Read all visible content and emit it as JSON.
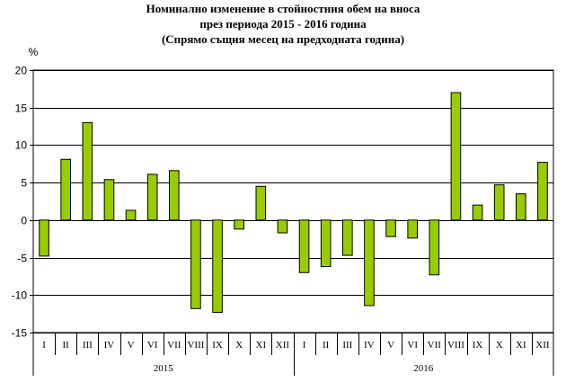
{
  "chart_data": {
    "type": "bar",
    "title_lines": [
      "Номинално изменение в стойностния обем   на вноса",
      "през периода 2015 - 2016 година",
      "(Спрямо същия месец на предходната година)"
    ],
    "ylabel": "%",
    "ylim": [
      -15,
      20
    ],
    "yticks": [
      -15,
      -10,
      -5,
      0,
      5,
      10,
      15,
      20
    ],
    "grid": true,
    "bar_color": "#99cc00",
    "categories": [
      "I",
      "II",
      "III",
      "IV",
      "V",
      "VI",
      "VII",
      "VIII",
      "IX",
      "X",
      "XI",
      "XII",
      "I",
      "II",
      "III",
      "IV",
      "V",
      "VI",
      "VII",
      "VIII",
      "IX",
      "X",
      "XI",
      "XII"
    ],
    "groups": [
      {
        "label": "2015",
        "count": 12
      },
      {
        "label": "2016",
        "count": 12
      }
    ],
    "values": [
      -4.8,
      8.1,
      13.0,
      5.4,
      1.3,
      6.1,
      6.6,
      -11.8,
      -12.3,
      -1.2,
      4.5,
      -1.7,
      -7.0,
      -6.2,
      -4.7,
      -11.4,
      -2.2,
      -2.4,
      -7.3,
      17.0,
      2.0,
      4.7,
      3.5,
      7.7
    ]
  }
}
